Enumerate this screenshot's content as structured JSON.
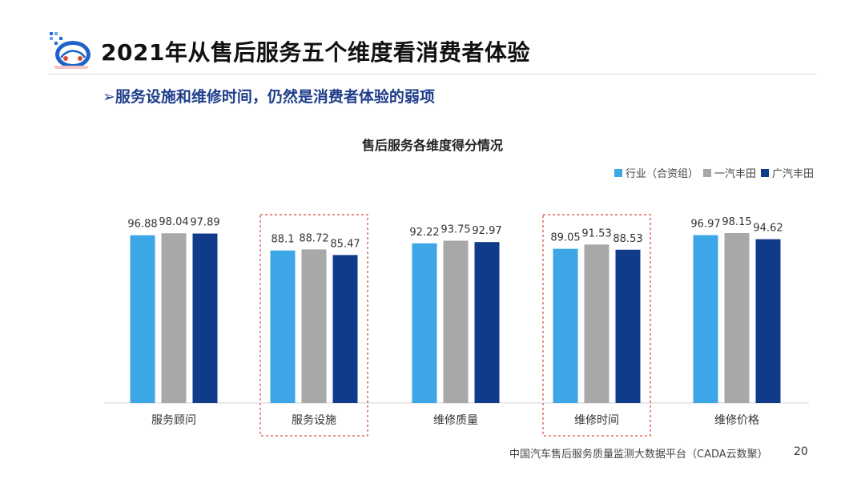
{
  "header": {
    "title": "2021年从售后服务五个维度看消费者体验",
    "subtitle": "服务设施和维修时间，仍然是消费者体验的弱项",
    "subtitle_marker": "➢"
  },
  "colors": {
    "industry": "#3ca6e6",
    "faw_toyota": "#a8a8a8",
    "gac_toyota": "#103a8a",
    "highlight_box": "#d9453b",
    "axis": "#d0d0d0"
  },
  "chart_data": {
    "type": "bar",
    "title": "售后服务各维度得分情况",
    "categories": [
      "服务顾问",
      "服务设施",
      "维修质量",
      "维修时间",
      "维修价格"
    ],
    "series": [
      {
        "name": "行业（合资组）",
        "values": [
          96.88,
          88.1,
          92.22,
          89.05,
          96.97
        ]
      },
      {
        "name": "一汽丰田",
        "values": [
          98.04,
          88.72,
          93.75,
          91.53,
          98.15
        ]
      },
      {
        "name": "广汽丰田",
        "values": [
          97.89,
          85.47,
          92.97,
          88.53,
          94.62
        ]
      }
    ],
    "value_labels": [
      [
        "96.88",
        "98.04",
        "97.89"
      ],
      [
        "88.1",
        "88.72",
        "85.47"
      ],
      [
        "92.22",
        "93.75",
        "92.97"
      ],
      [
        "89.05",
        "91.53",
        "88.53"
      ],
      [
        "96.97",
        "98.15",
        "94.62"
      ]
    ],
    "ylim": [
      0,
      100
    ],
    "highlighted_categories": [
      1,
      3
    ],
    "legend_position": "top-right",
    "grid": false
  },
  "footer": {
    "source": "中国汽车售后服务质量监测大数据平台（CADA云数聚）",
    "page": "20"
  }
}
